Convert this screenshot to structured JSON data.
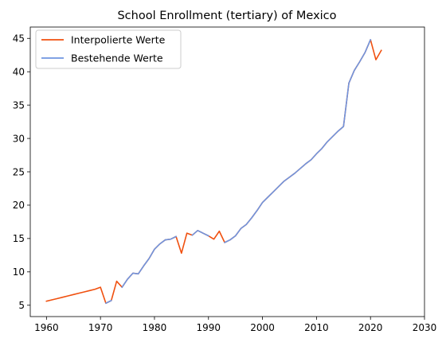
{
  "chart_data": {
    "type": "line",
    "title": "School Enrollment (tertiary) of Mexico",
    "xlabel": "",
    "ylabel": "",
    "xlim": [
      1957,
      2030
    ],
    "ylim": [
      3.3,
      46.7
    ],
    "xticks": [
      1960,
      1970,
      1980,
      1990,
      2000,
      2010,
      2020,
      2030
    ],
    "yticks": [
      5,
      10,
      15,
      20,
      25,
      30,
      35,
      40,
      45
    ],
    "grid": false,
    "legend_position": "top-left",
    "series": [
      {
        "name": "Interpolierte Werte",
        "color": "#f0500f",
        "x": [
          1960,
          1961,
          1962,
          1963,
          1964,
          1965,
          1966,
          1967,
          1968,
          1969,
          1970,
          1971,
          1972,
          1973,
          1974,
          1975,
          1976,
          1977,
          1978,
          1979,
          1980,
          1981,
          1982,
          1983,
          1984,
          1985,
          1986,
          1987,
          1988,
          1989,
          1990,
          1991,
          1992,
          1993,
          1994,
          1995,
          1996,
          1997,
          1998,
          1999,
          2000,
          2001,
          2002,
          2003,
          2004,
          2005,
          2006,
          2007,
          2008,
          2009,
          2010,
          2011,
          2012,
          2013,
          2014,
          2015,
          2016,
          2017,
          2018,
          2019,
          2020,
          2021,
          2022
        ],
        "y": [
          5.6,
          5.8,
          6.0,
          6.2,
          6.4,
          6.6,
          6.8,
          7.0,
          7.2,
          7.4,
          7.7,
          5.3,
          5.7,
          8.6,
          7.7,
          8.9,
          9.8,
          9.7,
          10.9,
          12.0,
          13.4,
          14.2,
          14.8,
          14.9,
          15.3,
          12.8,
          15.8,
          15.5,
          16.2,
          15.8,
          15.4,
          14.9,
          16.1,
          14.4,
          14.8,
          15.4,
          16.5,
          17.1,
          18.1,
          19.2,
          20.4,
          21.2,
          22.0,
          22.8,
          23.6,
          24.2,
          24.8,
          25.5,
          26.2,
          26.8,
          27.7,
          28.5,
          29.5,
          30.3,
          31.1,
          31.8,
          38.3,
          40.2,
          41.5,
          42.9,
          44.8,
          41.8,
          43.2
        ]
      },
      {
        "name": "Bestehende Werte",
        "color": "#6f95e0",
        "x": [
          1971,
          1972,
          1973,
          1974,
          1975,
          1976,
          1977,
          1978,
          1979,
          1980,
          1981,
          1982,
          1983,
          1984,
          1985,
          1986,
          1987,
          1988,
          1989,
          1990,
          1991,
          1992,
          1993,
          1994,
          1995,
          1996,
          1997,
          1998,
          1999,
          2000,
          2001,
          2002,
          2003,
          2004,
          2005,
          2006,
          2007,
          2008,
          2009,
          2010,
          2011,
          2012,
          2013,
          2014,
          2015,
          2016,
          2017,
          2018,
          2019,
          2020
        ],
        "y": [
          5.3,
          5.7,
          null,
          7.7,
          8.9,
          9.8,
          9.7,
          10.9,
          12.0,
          13.4,
          14.2,
          14.8,
          14.9,
          15.3,
          null,
          null,
          15.5,
          16.2,
          15.8,
          15.4,
          null,
          null,
          14.4,
          14.8,
          15.4,
          16.5,
          17.1,
          18.1,
          19.2,
          20.4,
          21.2,
          22.0,
          22.8,
          23.6,
          24.2,
          24.8,
          25.5,
          26.2,
          26.8,
          27.7,
          28.5,
          29.5,
          30.3,
          31.1,
          31.8,
          38.3,
          40.2,
          41.5,
          42.9,
          44.8
        ]
      }
    ]
  }
}
